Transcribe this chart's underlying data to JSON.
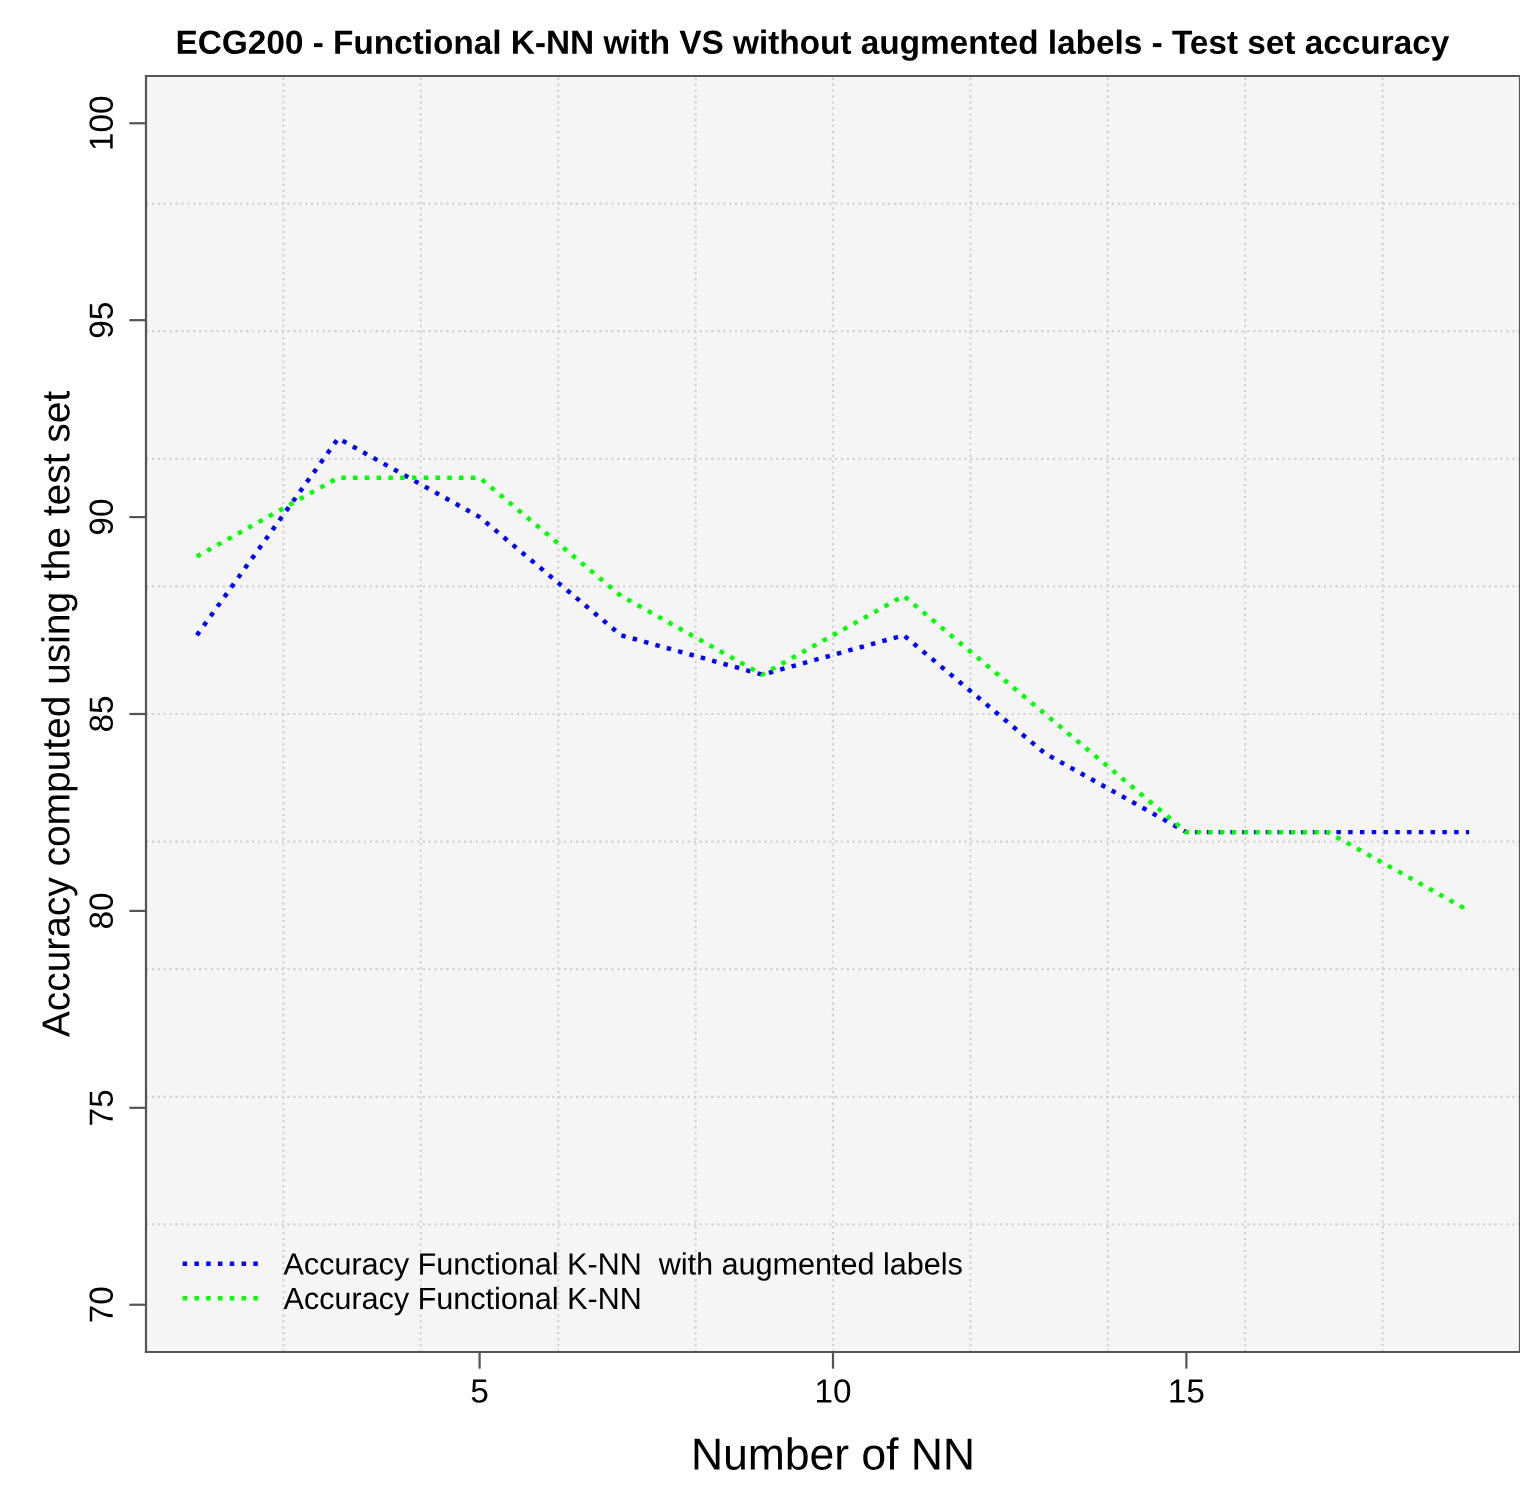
{
  "chart_data": {
    "type": "line",
    "title": "ECG200 - Functional K-NN with VS without augmented labels - Test set accuracy",
    "xlabel": "Number of NN",
    "ylabel": "Accuracy computed using the test set",
    "x": [
      1,
      3,
      5,
      7,
      9,
      11,
      13,
      15,
      17,
      19
    ],
    "series": [
      {
        "name": "Accuracy Functional K-NN  with augmented labels",
        "color": "#0000ff",
        "values": [
          87,
          92,
          90,
          87,
          86,
          87,
          84,
          82,
          82,
          82
        ]
      },
      {
        "name": "Accuracy Functional K-NN",
        "color": "#00ff00",
        "values": [
          89,
          91,
          91,
          88,
          86,
          88,
          85,
          82,
          82,
          80
        ]
      }
    ],
    "xlim": [
      0.28,
      19.72
    ],
    "ylim": [
      68.8,
      101.2
    ],
    "xticks": [
      5,
      10,
      15
    ],
    "yticks": [
      70,
      75,
      80,
      85,
      90,
      95,
      100
    ],
    "grid": true,
    "legend": "bottom left",
    "line_style": "dotted",
    "marker": "none"
  }
}
